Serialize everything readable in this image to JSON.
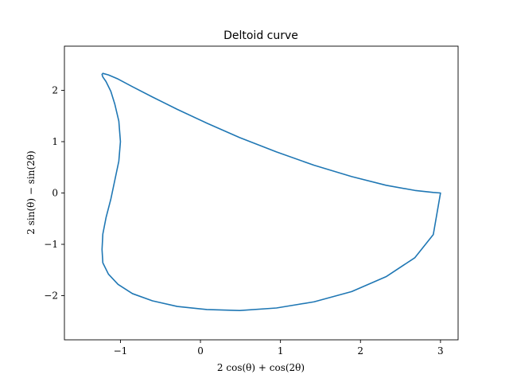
{
  "chart_data": {
    "type": "line",
    "title": "Deltoid curve",
    "xlabel": "2 cos(θ) + cos(2θ)",
    "ylabel": "2 sin(θ) − sin(2θ)",
    "xlim": [
      -1.7,
      3.22
    ],
    "ylim": [
      -2.86,
      2.86
    ],
    "x_ticks": [
      -1,
      0,
      1,
      2,
      3
    ],
    "y_ticks": [
      -2,
      -1,
      0,
      1,
      2
    ],
    "x_tick_labels": [
      "−1",
      "0",
      "1",
      "2",
      "3"
    ],
    "y_tick_labels": [
      "−2",
      "−1",
      "0",
      "1",
      "2"
    ],
    "grid": false,
    "series": [
      {
        "color": "#1f77b4",
        "x": [
          3.0,
          2.91,
          2.68,
          2.32,
          1.89,
          1.42,
          0.95,
          0.49,
          0.08,
          -0.29,
          -0.6,
          -0.85,
          -1.03,
          -1.15,
          -1.22,
          -1.23,
          -1.22,
          -1.18,
          -1.12,
          -1.07,
          -1.02,
          -1.0,
          -1.02,
          -1.07,
          -1.12,
          -1.18,
          -1.22,
          -1.23,
          -1.22,
          -1.15,
          -1.03,
          -0.85,
          -0.6,
          -0.29,
          0.08,
          0.49,
          0.95,
          1.42,
          1.89,
          2.32,
          2.68,
          2.91,
          3.0
        ],
        "y": [
          0.0,
          0.01,
          0.05,
          0.15,
          0.32,
          0.54,
          0.8,
          1.08,
          1.36,
          1.63,
          1.87,
          2.07,
          2.22,
          2.3,
          2.33,
          2.31,
          2.26,
          2.17,
          1.98,
          1.73,
          1.4,
          1.0,
          0.62,
          0.25,
          -0.12,
          -0.48,
          -0.8,
          -1.1,
          -1.36,
          -1.58,
          -1.78,
          -1.96,
          -2.1,
          -2.21,
          -2.27,
          -2.29,
          -2.24,
          -2.12,
          -1.92,
          -1.63,
          -1.26,
          -0.81,
          0.0
        ]
      }
    ]
  }
}
